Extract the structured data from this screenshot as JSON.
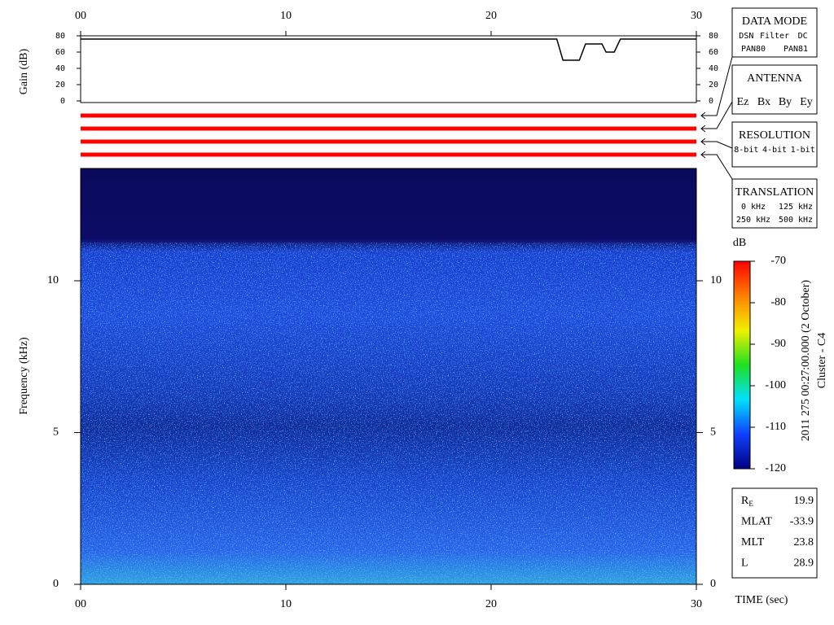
{
  "chart_data": [
    {
      "type": "line",
      "ylabel": "Gain (dB)",
      "color": "#000000",
      "xlim": [
        0,
        30
      ],
      "xticks": [
        {
          "value": 0,
          "label": "00"
        },
        10,
        20,
        30
      ],
      "ylim": [
        0,
        80
      ],
      "yticks": [
        0,
        20,
        40,
        60,
        80
      ],
      "x": [
        0,
        23.2,
        23.5,
        24.3,
        24.6,
        25.4,
        25.6,
        26,
        26.3,
        30
      ],
      "values": [
        76,
        76,
        50,
        50,
        70,
        70,
        60,
        60,
        76,
        76
      ]
    },
    {
      "type": "heatmap",
      "ylabel": "Frequency (kHz)",
      "xlabel": "TIME (sec)",
      "xlim": [
        0,
        30
      ],
      "xticks": [
        {
          "value": 0,
          "label": "00"
        },
        10,
        20,
        30
      ],
      "ylim": [
        0,
        13.7
      ],
      "yticks": [
        0,
        5,
        10
      ]
    },
    {
      "type": "colorbar",
      "title": "dB",
      "ylim": [
        -120,
        -70
      ],
      "yticks": [
        -70,
        -80,
        -90,
        -100,
        -110,
        -120
      ],
      "colors": [
        "#000080",
        "#1040ff",
        "#00e0ff",
        "#20e020",
        "#f0f000",
        "#ff8000",
        "#ff0000"
      ]
    }
  ],
  "panels": [
    {
      "title": "DATA MODE",
      "rows": [
        [
          {
            "text": "DSN",
            "color": "#e00000"
          },
          {
            "text": "Filter",
            "color": "#00c000"
          },
          {
            "text": "DC",
            "color": "#0000e0"
          }
        ],
        [
          {
            "text": "PAN80",
            "color": "#000000"
          },
          {
            "text": "PAN81",
            "color": "#00c0e0"
          }
        ]
      ]
    },
    {
      "title": "ANTENNA",
      "rows": [
        [
          {
            "text": "Ez",
            "color": "#e00000"
          },
          {
            "text": "Bx",
            "color": "#00c000"
          },
          {
            "text": "By",
            "color": "#0000e0"
          },
          {
            "text": "Ey",
            "color": "#000000"
          }
        ]
      ]
    },
    {
      "title": "RESOLUTION",
      "rows": [
        [
          {
            "text": "8-bit",
            "color": "#e00000"
          },
          {
            "text": "4-bit",
            "color": "#00c000"
          },
          {
            "text": "1-bit",
            "color": "#0000e0"
          }
        ]
      ]
    },
    {
      "title": "TRANSLATION",
      "rows": [
        [
          {
            "text": "0 kHz",
            "color": "#e00000"
          },
          {
            "text": "125 kHz",
            "color": "#00c000"
          }
        ],
        [
          {
            "text": "250 kHz",
            "color": "#0000e0"
          },
          {
            "text": "500 kHz",
            "color": "#000000"
          }
        ]
      ]
    }
  ],
  "parameters": [
    {
      "label": "R",
      "sub": "E",
      "value": "19.9"
    },
    {
      "label": "MLAT",
      "value": "-33.9"
    },
    {
      "label": "MLT",
      "value": "23.8"
    },
    {
      "label": "L",
      "value": "28.9"
    }
  ],
  "caption": [
    "2011 275 00:27:00.000 (2 October)",
    "Cluster - C4"
  ]
}
